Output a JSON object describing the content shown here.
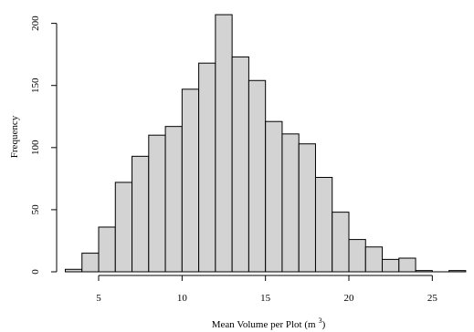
{
  "chart_data": {
    "type": "bar",
    "xlabel": "Mean Volume per Plot (m",
    "xlabel_superscript": "3",
    "xlabel_close": ")",
    "ylabel": "Frequency",
    "bins": [
      {
        "start": 3,
        "end": 4,
        "count": 2
      },
      {
        "start": 4,
        "end": 5,
        "count": 15
      },
      {
        "start": 5,
        "end": 6,
        "count": 36
      },
      {
        "start": 6,
        "end": 7,
        "count": 72
      },
      {
        "start": 7,
        "end": 8,
        "count": 93
      },
      {
        "start": 8,
        "end": 9,
        "count": 110
      },
      {
        "start": 9,
        "end": 10,
        "count": 117
      },
      {
        "start": 10,
        "end": 11,
        "count": 147
      },
      {
        "start": 11,
        "end": 12,
        "count": 168
      },
      {
        "start": 12,
        "end": 13,
        "count": 207
      },
      {
        "start": 13,
        "end": 14,
        "count": 173
      },
      {
        "start": 14,
        "end": 15,
        "count": 154
      },
      {
        "start": 15,
        "end": 16,
        "count": 121
      },
      {
        "start": 16,
        "end": 17,
        "count": 111
      },
      {
        "start": 17,
        "end": 18,
        "count": 103
      },
      {
        "start": 18,
        "end": 19,
        "count": 76
      },
      {
        "start": 19,
        "end": 20,
        "count": 48
      },
      {
        "start": 20,
        "end": 21,
        "count": 26
      },
      {
        "start": 21,
        "end": 22,
        "count": 20
      },
      {
        "start": 22,
        "end": 23,
        "count": 10
      },
      {
        "start": 23,
        "end": 24,
        "count": 11
      },
      {
        "start": 24,
        "end": 25,
        "count": 1
      },
      {
        "start": 25,
        "end": 26,
        "count": 0
      },
      {
        "start": 26,
        "end": 27,
        "count": 1
      }
    ],
    "xticks": [
      5,
      10,
      15,
      20,
      25
    ],
    "yticks": [
      0,
      50,
      100,
      150,
      200
    ],
    "xlim": [
      2.7,
      27.5
    ],
    "ylim": [
      0,
      210
    ],
    "grid": false,
    "bar_color": "#d3d3d3",
    "edge_color": "#000000"
  }
}
